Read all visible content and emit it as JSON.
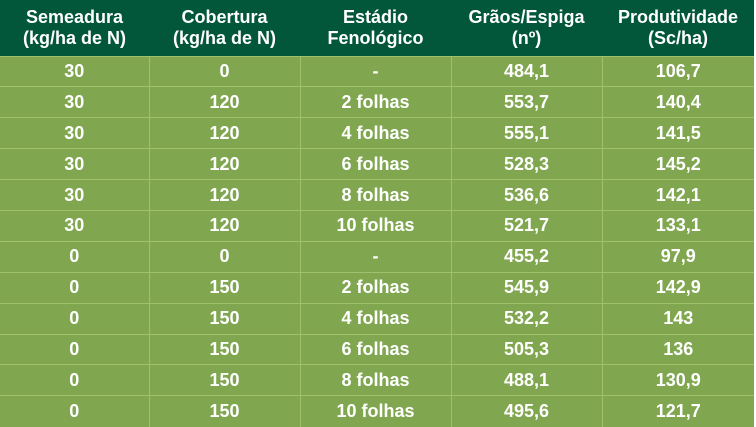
{
  "table": {
    "headers": [
      [
        "Semeadura",
        "(kg/ha de N)"
      ],
      [
        "Cobertura",
        "(kg/ha de N)"
      ],
      [
        "Estádio",
        "Fenológico"
      ],
      [
        "Grãos/Espiga",
        "(nº)"
      ],
      [
        "Produtividade",
        "(Sc/ha)"
      ]
    ],
    "rows": [
      [
        "30",
        "0",
        "-",
        "484,1",
        "106,7"
      ],
      [
        "30",
        "120",
        "2 folhas",
        "553,7",
        "140,4"
      ],
      [
        "30",
        "120",
        "4 folhas",
        "555,1",
        "141,5"
      ],
      [
        "30",
        "120",
        "6 folhas",
        "528,3",
        "145,2"
      ],
      [
        "30",
        "120",
        "8 folhas",
        "536,6",
        "142,1"
      ],
      [
        "30",
        "120",
        "10 folhas",
        "521,7",
        "133,1"
      ],
      [
        "0",
        "0",
        "-",
        "455,2",
        "97,9"
      ],
      [
        "0",
        "150",
        "2 folhas",
        "545,9",
        "142,9"
      ],
      [
        "0",
        "150",
        "4 folhas",
        "532,2",
        "143"
      ],
      [
        "0",
        "150",
        "6 folhas",
        "505,3",
        "136"
      ],
      [
        "0",
        "150",
        "8 folhas",
        "488,1",
        "130,9"
      ],
      [
        "0",
        "150",
        "10 folhas",
        "495,6",
        "121,7"
      ]
    ]
  },
  "colors": {
    "header_bg": "#02573a",
    "row_bg": "#80a74f",
    "grid_line": "#9fc06e",
    "text": "#ffffff"
  }
}
